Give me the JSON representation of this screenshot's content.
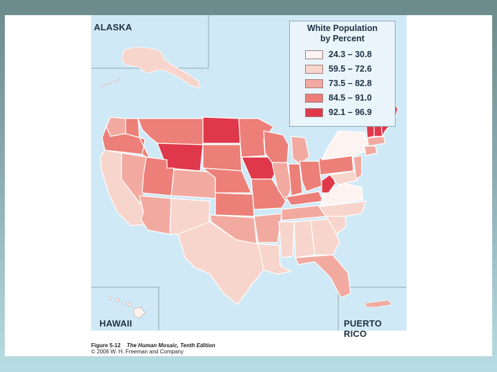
{
  "legend": {
    "title_line1": "White Population",
    "title_line2": "by Percent",
    "classes": [
      {
        "label": "24.3 – 30.8",
        "color": "#fdf4f1"
      },
      {
        "label": "59.5 – 72.6",
        "color": "#f8d5cc"
      },
      {
        "label": "73.5 – 82.8",
        "color": "#f2aaa0"
      },
      {
        "label": "84.5 – 91.0",
        "color": "#ec7f78"
      },
      {
        "label": "92.1 – 96.9",
        "color": "#e0384b"
      }
    ]
  },
  "insets": {
    "alaska": "ALASKA",
    "hawaii": "HAWAII",
    "puerto_rico": "PUERTO RICO"
  },
  "caption": {
    "figure": "Figure 5-12",
    "book_title": "The Human Mosaic, Tenth Edition",
    "copyright": "© 2006 W. H. Freeman and Company"
  },
  "colors": {
    "water": "#cfe9f6",
    "border": "#ffffff",
    "frame": "#8fa7b3"
  }
}
